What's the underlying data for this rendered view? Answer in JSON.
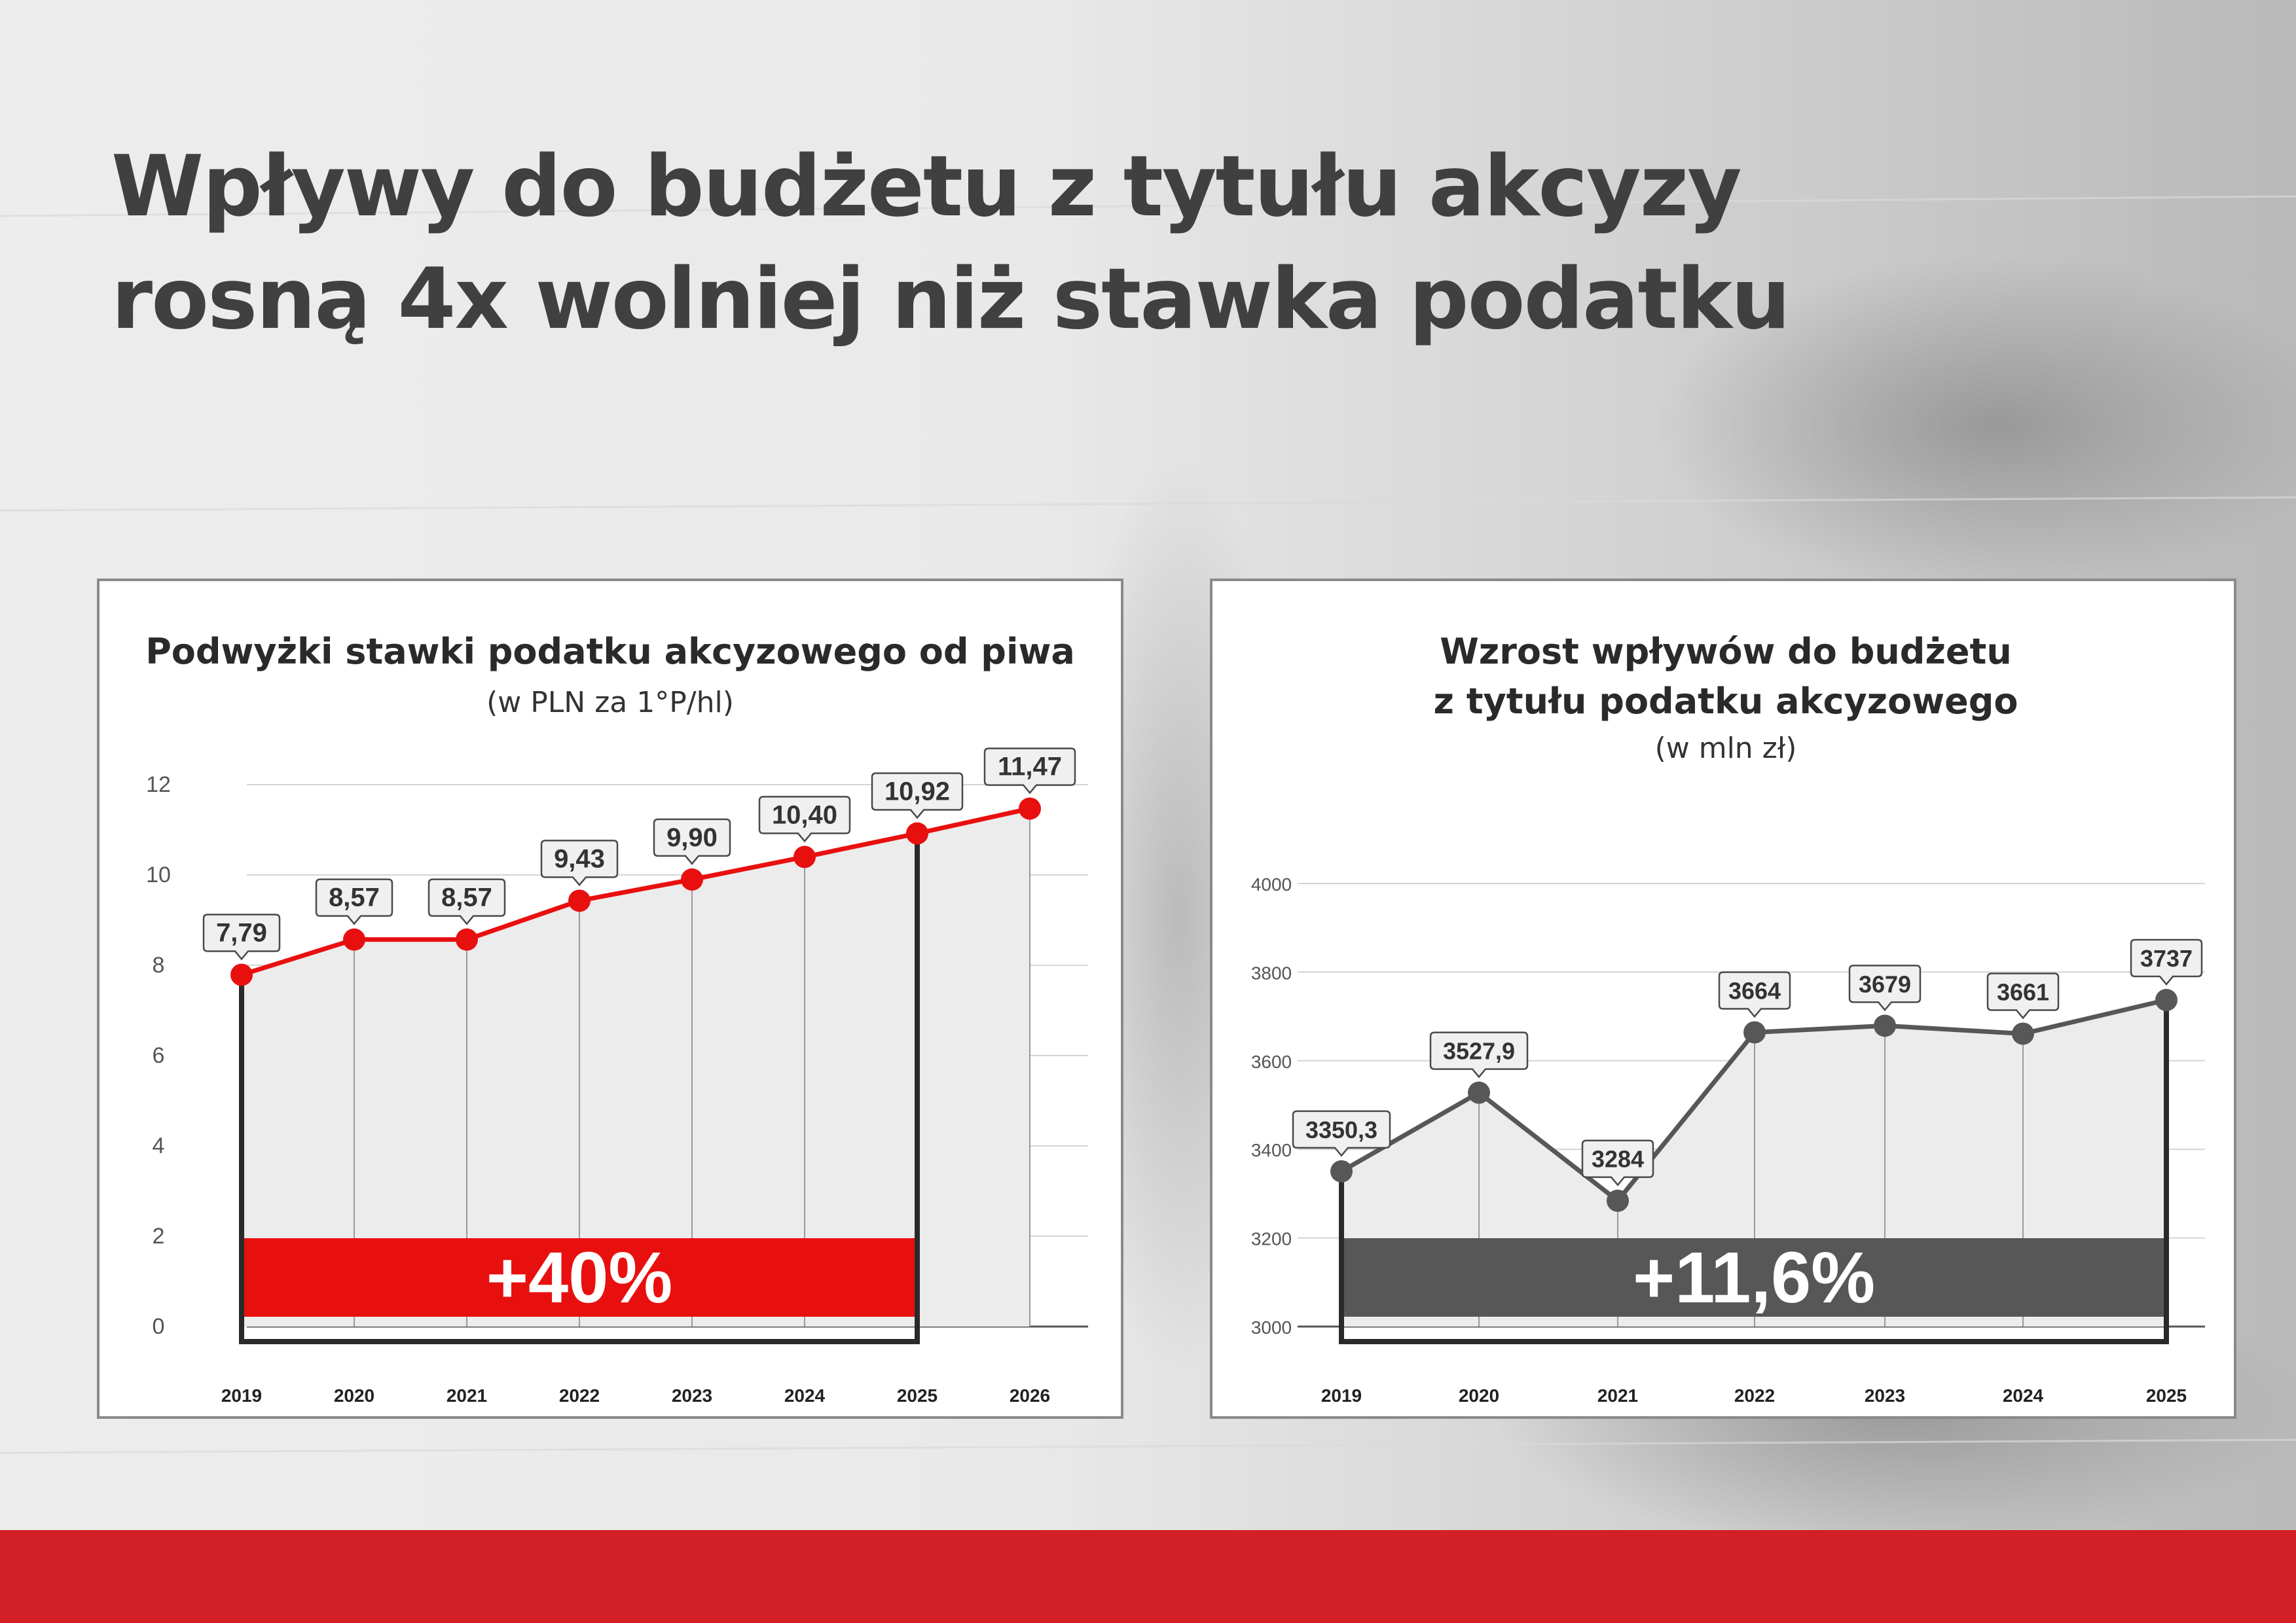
{
  "header": {
    "title_line1": "Wpływy do budżetu z tytułu akcyzy",
    "title_line2": "rosną 4x wolniej niż stawka podatku"
  },
  "colors": {
    "accent_red": "#e8100f",
    "dark_grey": "#575757",
    "footer_red": "#d31f26"
  },
  "chart_data": [
    {
      "type": "line",
      "title": "Podwyżki stawki podatku akcyzowego od piwa",
      "subtitle": "(w PLN za 1°P/hl)",
      "categories": [
        "2019",
        "2020",
        "2021",
        "2022",
        "2023",
        "2024",
        "2025",
        "2026"
      ],
      "values": [
        7.79,
        8.57,
        8.57,
        9.43,
        9.9,
        10.4,
        10.92,
        11.47
      ],
      "data_labels": [
        "7,79",
        "8,57",
        "8,57",
        "9,43",
        "9,90",
        "10,40",
        "10,92",
        "11,47"
      ],
      "ylim": [
        0,
        12
      ],
      "yticks": [
        0,
        2,
        4,
        6,
        8,
        10,
        12
      ],
      "grid": true,
      "highlight": {
        "from": "2019",
        "to": "2025",
        "label": "+40%",
        "color": "#e8100f"
      },
      "line_color": "#e8100f"
    },
    {
      "type": "line",
      "title": "Wzrost wpływów do budżetu",
      "title_line2": "z tytułu podatku akcyzowego",
      "subtitle": "(w mln zł)",
      "categories": [
        "2019",
        "2020",
        "2021",
        "2022",
        "2023",
        "2024",
        "2025"
      ],
      "values": [
        3350.3,
        3527.9,
        3284,
        3664,
        3679,
        3661,
        3737
      ],
      "data_labels": [
        "3350,3",
        "3527,9",
        "3284",
        "3664",
        "3679",
        "3661",
        "3737"
      ],
      "ylim": [
        3000,
        4000
      ],
      "yticks": [
        3000,
        3200,
        3400,
        3600,
        3800,
        4000
      ],
      "grid": true,
      "highlight": {
        "from": "2019",
        "to": "2025",
        "label": "+11,6%",
        "color": "#575757"
      },
      "line_color": "#575757"
    }
  ]
}
